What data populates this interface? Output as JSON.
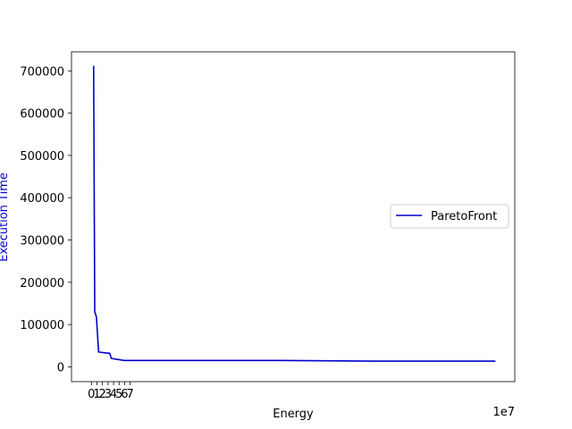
{
  "chart_data": {
    "type": "line",
    "title": "",
    "xlabel": "Energy",
    "ylabel": "Execution Time",
    "x_offset_label": "1e7",
    "xlim": [
      -3.6,
      76.5
    ],
    "ylim": [
      -35000,
      745000
    ],
    "x_ticks": [
      0,
      1,
      2,
      3,
      4,
      5,
      6,
      7
    ],
    "x_tick_labels": [
      "0",
      "1",
      "2",
      "3",
      "4",
      "5",
      "6",
      "7"
    ],
    "y_ticks": [
      0,
      100000,
      200000,
      300000,
      400000,
      500000,
      600000,
      700000
    ],
    "y_tick_labels": [
      "0",
      "100000",
      "200000",
      "300000",
      "400000",
      "500000",
      "600000",
      "700000"
    ],
    "legend_position": "center-right",
    "series": [
      {
        "name": "ParetoFront",
        "color": "#0000cd",
        "x": [
          0.4,
          0.6,
          0.9,
          1.3,
          2.5,
          3.3,
          3.6,
          5.9,
          8.0,
          20.0,
          34.0,
          51.0,
          73.0
        ],
        "y": [
          712000,
          130000,
          118000,
          35000,
          33000,
          32000,
          20000,
          15000,
          15000,
          15000,
          15000,
          13500,
          13500
        ]
      }
    ]
  }
}
